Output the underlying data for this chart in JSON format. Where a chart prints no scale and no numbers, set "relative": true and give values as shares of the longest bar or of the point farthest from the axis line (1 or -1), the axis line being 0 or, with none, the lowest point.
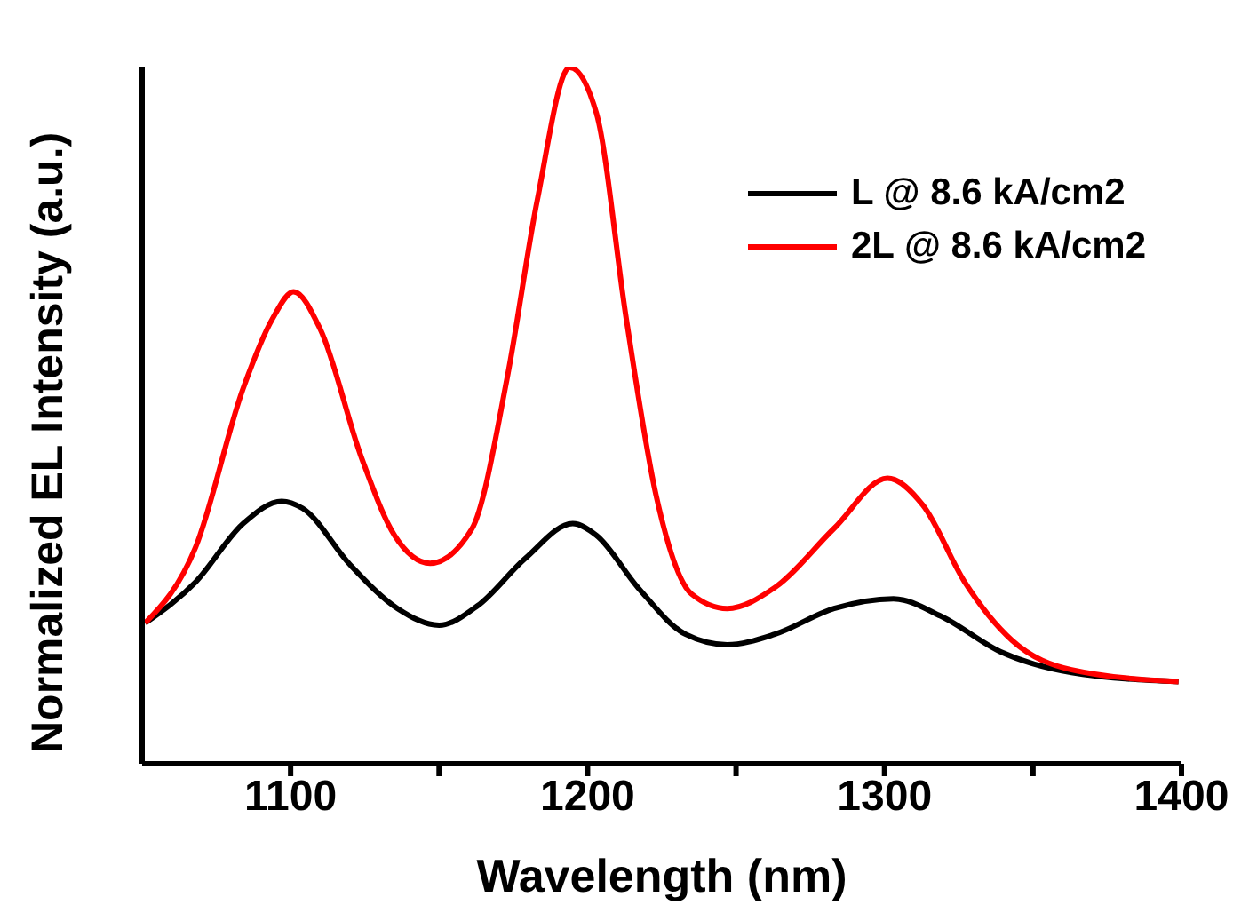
{
  "chart_data": {
    "type": "line",
    "relative": true,
    "xlabel": "Wavelength (nm)",
    "ylabel": "Normalized EL Intensity (a.u.)",
    "xlim": [
      1050,
      1400
    ],
    "xticks": [
      1100,
      {
        "value": 1150,
        "label": null
      },
      1200,
      {
        "value": 1250,
        "label": null
      },
      1300,
      {
        "value": 1350,
        "label": null
      },
      1400
    ],
    "legend": "top right",
    "marker": "none",
    "line_style": "solid",
    "series": [
      {
        "name": "L @ 8.6 kA/cm2",
        "color": "#000000",
        "x": [
          1051,
          1068,
          1084,
          1097,
          1104,
          1120,
          1136,
          1150,
          1163,
          1179,
          1195,
          1203,
          1217,
          1233,
          1247,
          1263,
          1283,
          1303,
          1319,
          1339,
          1363,
          1399
        ],
        "values": [
          0.202,
          0.261,
          0.345,
          0.377,
          0.367,
          0.286,
          0.223,
          0.199,
          0.227,
          0.295,
          0.345,
          0.328,
          0.253,
          0.186,
          0.171,
          0.186,
          0.223,
          0.237,
          0.212,
          0.161,
          0.131,
          0.118
        ]
      },
      {
        "name": "2L @ 8.6 kA/cm2",
        "color": "#ff0000",
        "x": [
          1051,
          1068,
          1084,
          1094,
          1101,
          1110,
          1124,
          1135,
          1147,
          1161,
          1173,
          1183,
          1194,
          1203,
          1213,
          1223,
          1235,
          1247,
          1263,
          1283,
          1301,
          1313,
          1327,
          1343,
          1363,
          1399
        ],
        "values": [
          0.202,
          0.311,
          0.539,
          0.64,
          0.678,
          0.624,
          0.438,
          0.328,
          0.288,
          0.337,
          0.556,
          0.808,
          1.0,
          0.934,
          0.64,
          0.387,
          0.244,
          0.223,
          0.253,
          0.338,
          0.41,
          0.371,
          0.261,
          0.177,
          0.135,
          0.118
        ]
      }
    ]
  }
}
